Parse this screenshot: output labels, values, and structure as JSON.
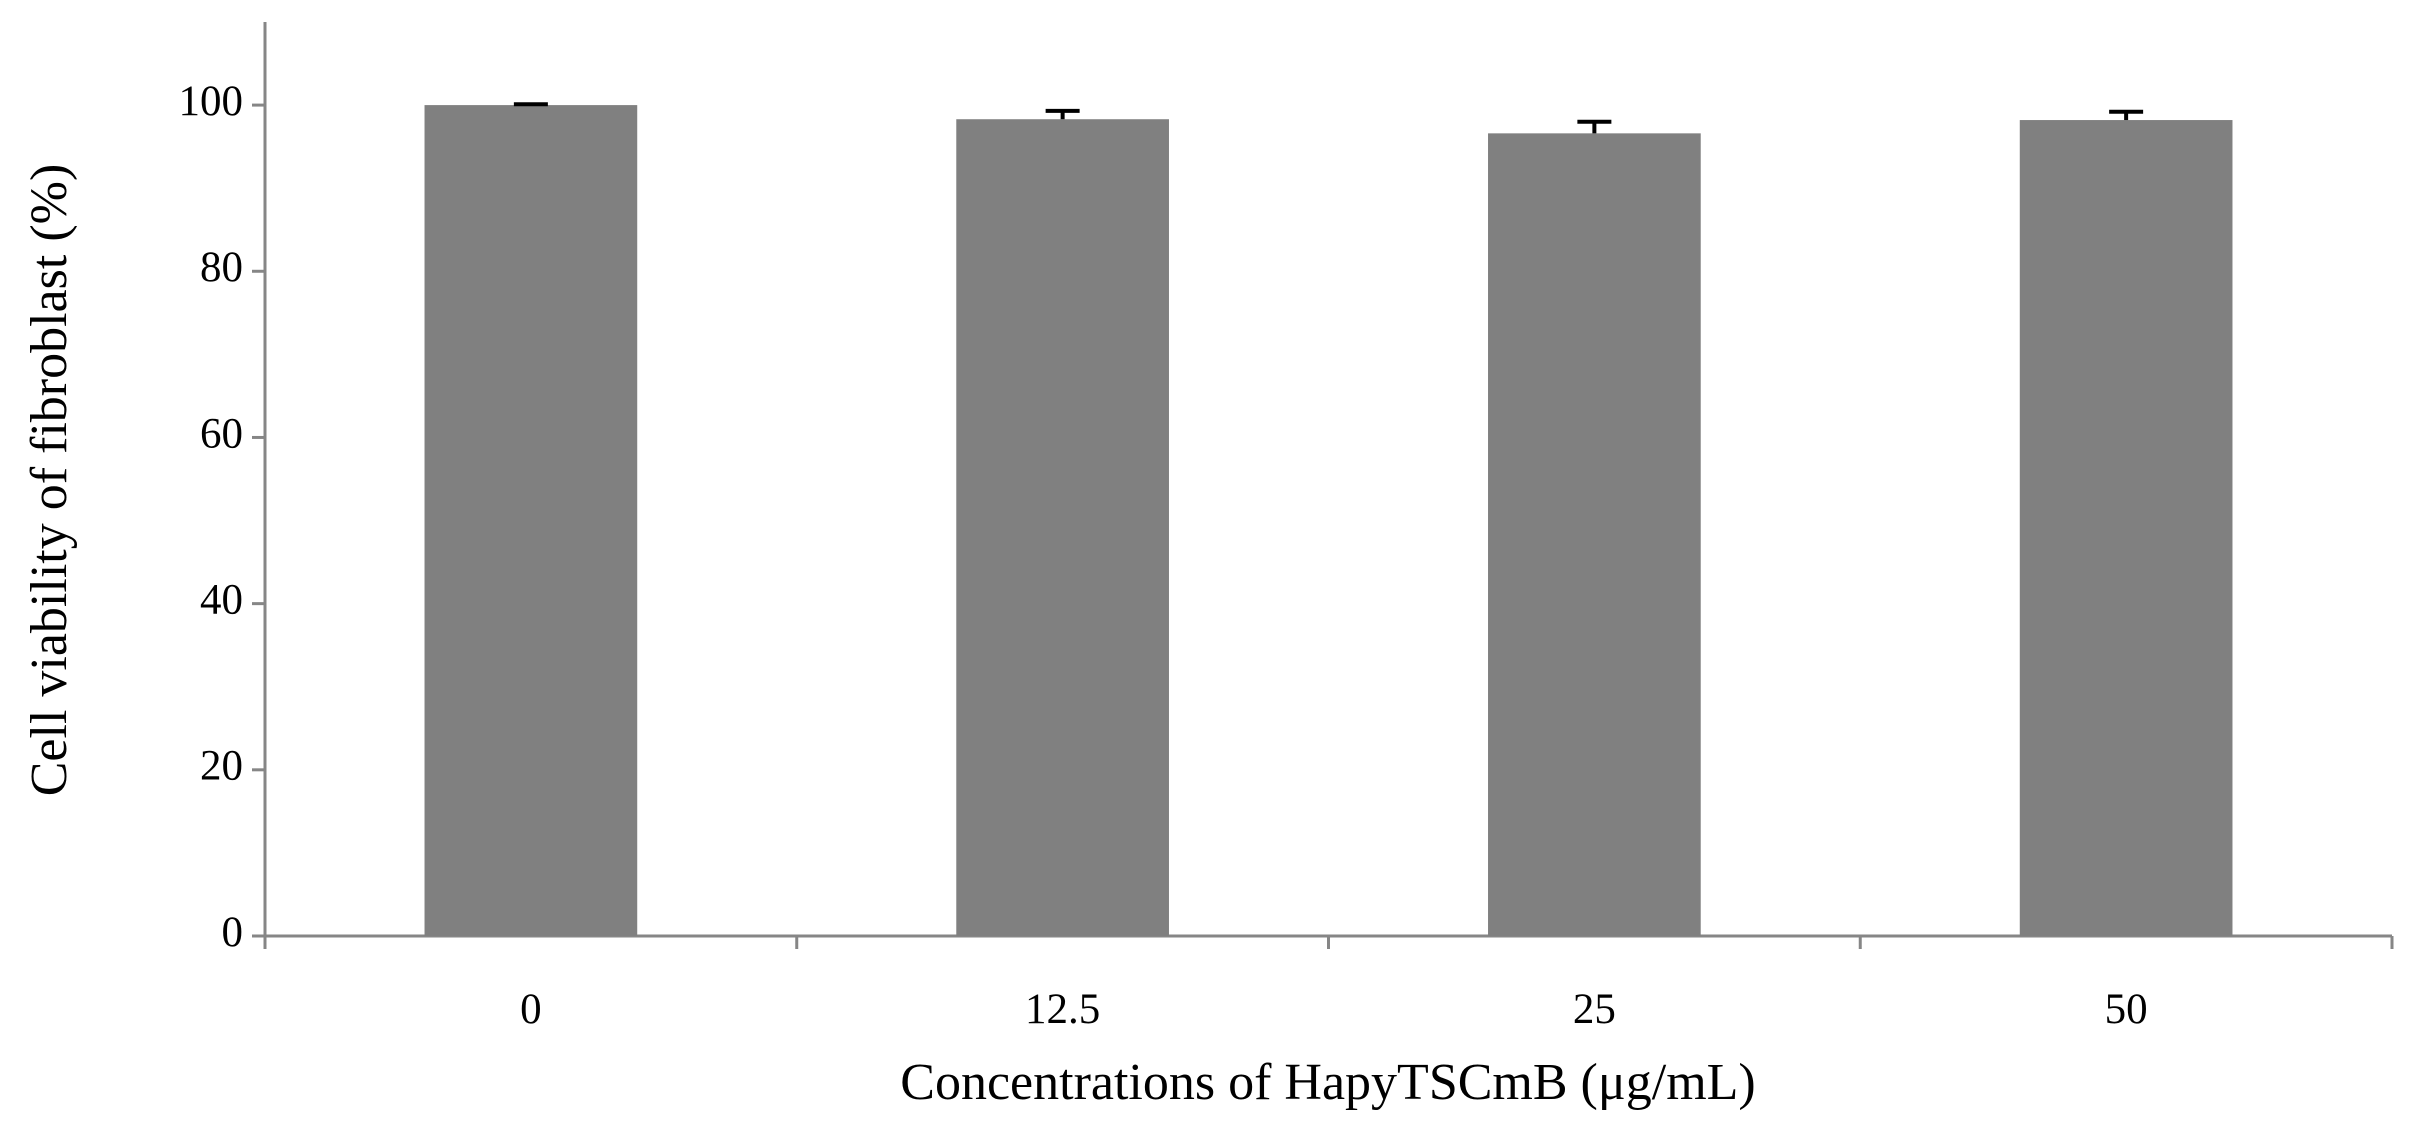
{
  "chart_data": {
    "type": "bar",
    "x_label": "Concentrations of HapyTSCmB (μg/mL)",
    "y_label": "Cell viability of fibroblast (%)",
    "categories": [
      "0",
      "12.5",
      "25",
      "50"
    ],
    "values": [
      100,
      98.3,
      96.6,
      98.2
    ],
    "errors": [
      0.1,
      1.0,
      1.4,
      1.0
    ],
    "color": "#808080",
    "error_color": "#000000",
    "ylim": [
      0,
      110
    ],
    "yticks": [
      0,
      20,
      40,
      60,
      80,
      100
    ],
    "grid": false
  }
}
